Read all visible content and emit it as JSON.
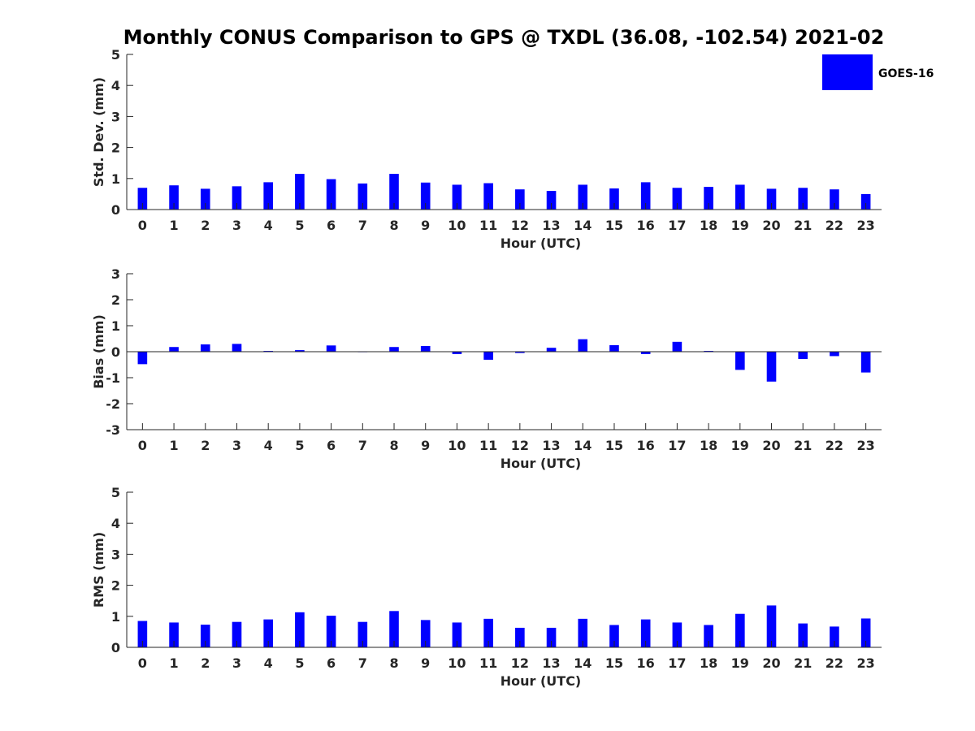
{
  "title": "Monthly CONUS Comparison to GPS @ TXDL (36.08, -102.54) 2021-02",
  "legend": {
    "label": "GOES-16",
    "color": "#0000ff",
    "placement": "top-right"
  },
  "colors": {
    "bar": "#0000ff",
    "axis": "#262626"
  },
  "chart_data": [
    {
      "type": "bar",
      "name": "std-dev",
      "xlabel": "Hour (UTC)",
      "ylabel": "Std. Dev. (mm)",
      "ylim": [
        0,
        5
      ],
      "yticks": [
        0,
        1,
        2,
        3,
        4,
        5
      ],
      "categories": [
        0,
        1,
        2,
        3,
        4,
        5,
        6,
        7,
        8,
        9,
        10,
        11,
        12,
        13,
        14,
        15,
        16,
        17,
        18,
        19,
        20,
        21,
        22,
        23
      ],
      "series": [
        {
          "name": "GOES-16",
          "values": [
            0.7,
            0.78,
            0.67,
            0.75,
            0.88,
            1.15,
            0.98,
            0.84,
            1.15,
            0.87,
            0.8,
            0.85,
            0.65,
            0.6,
            0.8,
            0.68,
            0.88,
            0.7,
            0.73,
            0.8,
            0.67,
            0.7,
            0.65,
            0.5
          ]
        }
      ],
      "grid": false
    },
    {
      "type": "bar",
      "name": "bias",
      "xlabel": "Hour (UTC)",
      "ylabel": "Bias (mm)",
      "ylim": [
        -3,
        3
      ],
      "yticks": [
        -3,
        -2,
        -1,
        0,
        1,
        2,
        3
      ],
      "categories": [
        0,
        1,
        2,
        3,
        4,
        5,
        6,
        7,
        8,
        9,
        10,
        11,
        12,
        13,
        14,
        15,
        16,
        17,
        18,
        19,
        20,
        21,
        22,
        23
      ],
      "series": [
        {
          "name": "GOES-16",
          "values": [
            -0.48,
            0.18,
            0.28,
            0.3,
            0.03,
            0.06,
            0.24,
            0.0,
            0.18,
            0.22,
            -0.09,
            -0.31,
            -0.05,
            0.15,
            0.48,
            0.25,
            -0.09,
            0.38,
            0.03,
            -0.7,
            -1.15,
            -0.28,
            -0.17,
            -0.8
          ]
        }
      ],
      "grid": false
    },
    {
      "type": "bar",
      "name": "rms",
      "xlabel": "Hour (UTC)",
      "ylabel": "RMS (mm)",
      "ylim": [
        0,
        5
      ],
      "yticks": [
        0,
        1,
        2,
        3,
        4,
        5
      ],
      "categories": [
        0,
        1,
        2,
        3,
        4,
        5,
        6,
        7,
        8,
        9,
        10,
        11,
        12,
        13,
        14,
        15,
        16,
        17,
        18,
        19,
        20,
        21,
        22,
        23
      ],
      "series": [
        {
          "name": "GOES-16",
          "values": [
            0.85,
            0.8,
            0.73,
            0.82,
            0.9,
            1.13,
            1.02,
            0.82,
            1.17,
            0.88,
            0.8,
            0.92,
            0.63,
            0.63,
            0.92,
            0.72,
            0.9,
            0.8,
            0.72,
            1.08,
            1.35,
            0.77,
            0.67,
            0.93
          ]
        }
      ],
      "grid": false
    }
  ]
}
